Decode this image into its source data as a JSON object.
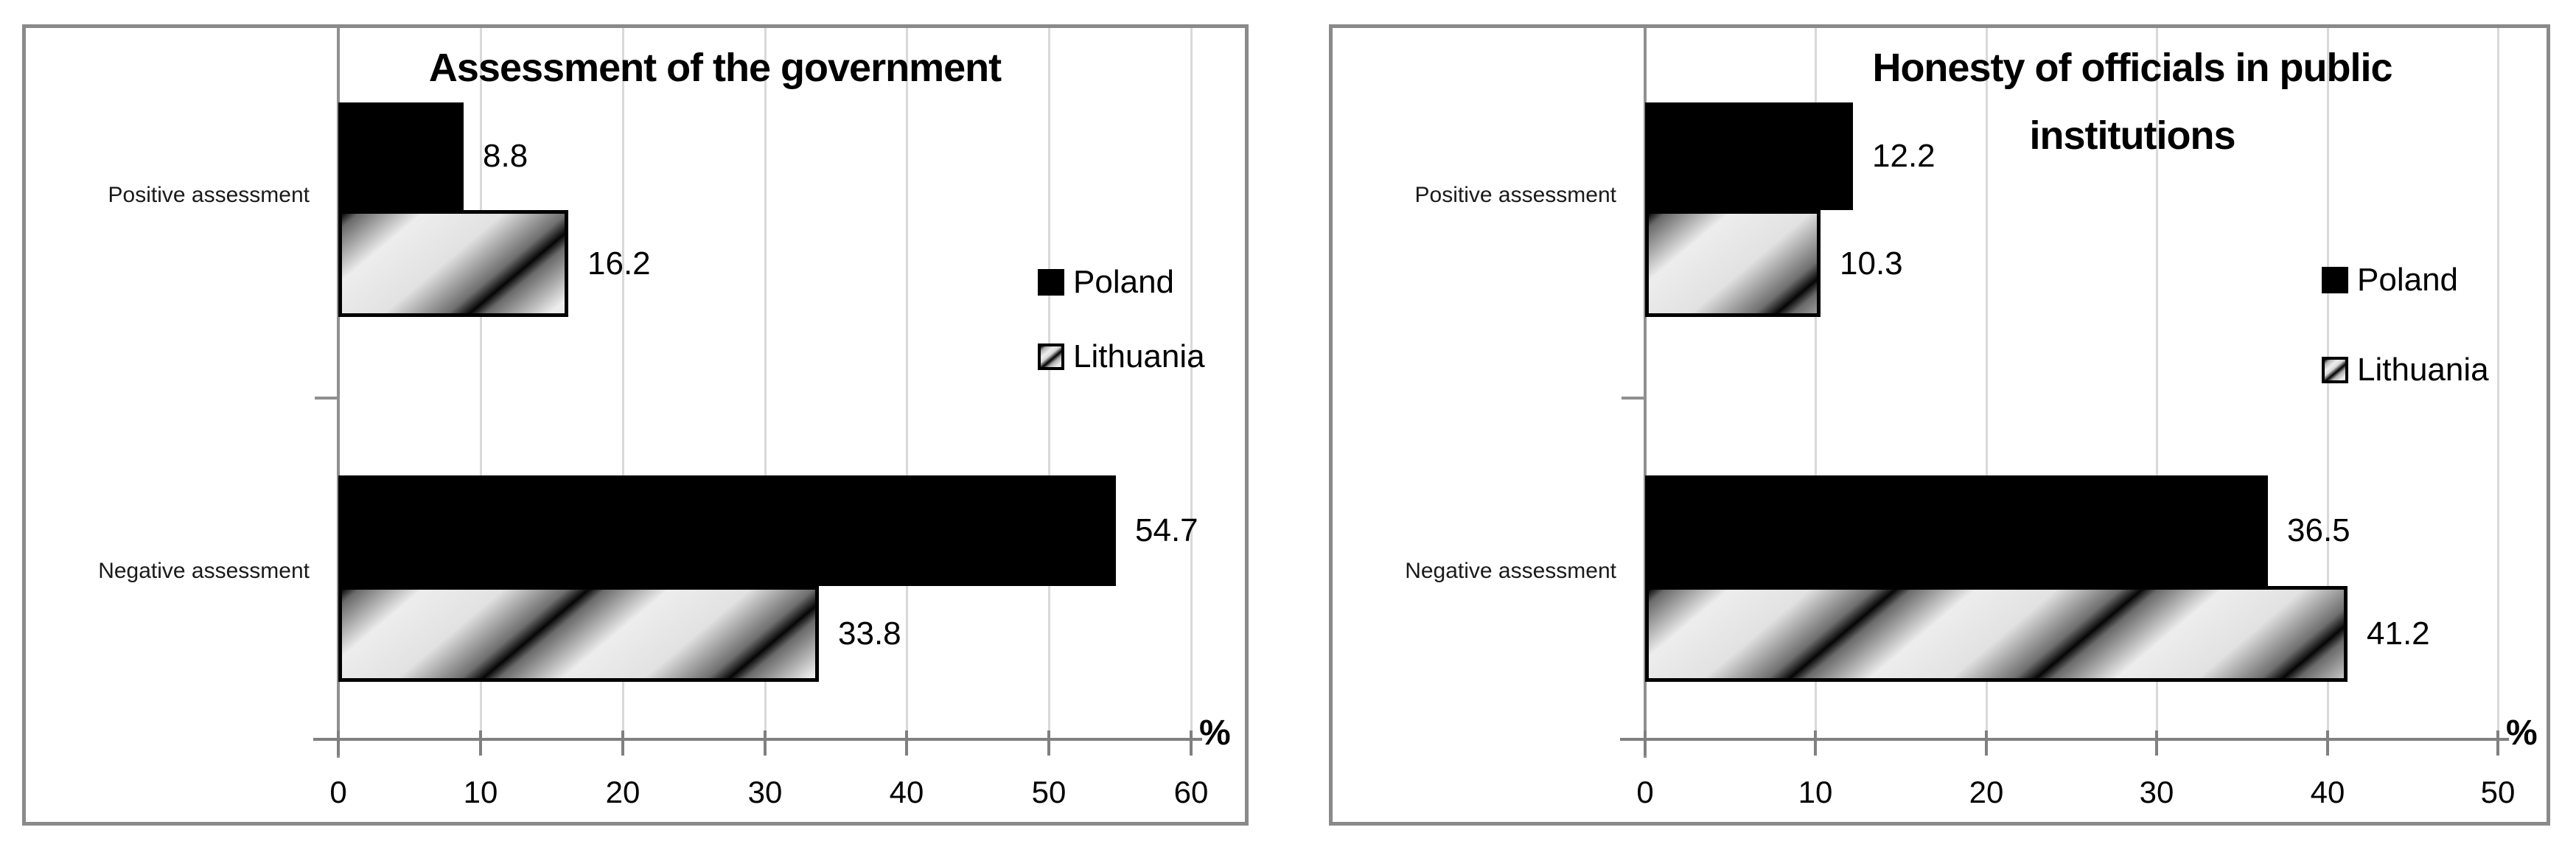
{
  "colors": {
    "background": "#ffffff",
    "panel_border": "#8a8a8a",
    "axis_line": "#808080",
    "gridline": "#d9d9d9",
    "bar_poland": "#000000",
    "bar_lithuania_hatch_dark": "#000000",
    "bar_lithuania_hatch_light": "#e8e8e8",
    "text": "#000000"
  },
  "chart_data": [
    {
      "type": "bar",
      "orientation": "horizontal",
      "title": "Assessment of the government",
      "categories": [
        "Positive assessment",
        "Negative assessment"
      ],
      "series": [
        {
          "name": "Poland",
          "style": "solid-black",
          "values": [
            8.8,
            54.7
          ]
        },
        {
          "name": "Lithuania",
          "style": "diagonal-hatch",
          "values": [
            16.2,
            33.8
          ]
        }
      ],
      "axis": {
        "unit_label": "%",
        "min": 0,
        "max": 60,
        "step": 10,
        "ticks": [
          "0",
          "10",
          "20",
          "30",
          "40",
          "50",
          "60"
        ]
      },
      "grid": "vertical-on",
      "legend_position": "right-inside"
    },
    {
      "type": "bar",
      "orientation": "horizontal",
      "title": "Honesty of officials in public\ninstitutions",
      "categories": [
        "Positive assessment",
        "Negative assessment"
      ],
      "series": [
        {
          "name": "Poland",
          "style": "solid-black",
          "values": [
            12.2,
            36.5
          ]
        },
        {
          "name": "Lithuania",
          "style": "diagonal-hatch",
          "values": [
            10.3,
            41.2
          ]
        }
      ],
      "axis": {
        "unit_label": "%",
        "min": 0,
        "max": 50,
        "step": 10,
        "ticks": [
          "0",
          "10",
          "20",
          "30",
          "40",
          "50"
        ]
      },
      "grid": "vertical-on",
      "legend_position": "right-inside"
    }
  ]
}
